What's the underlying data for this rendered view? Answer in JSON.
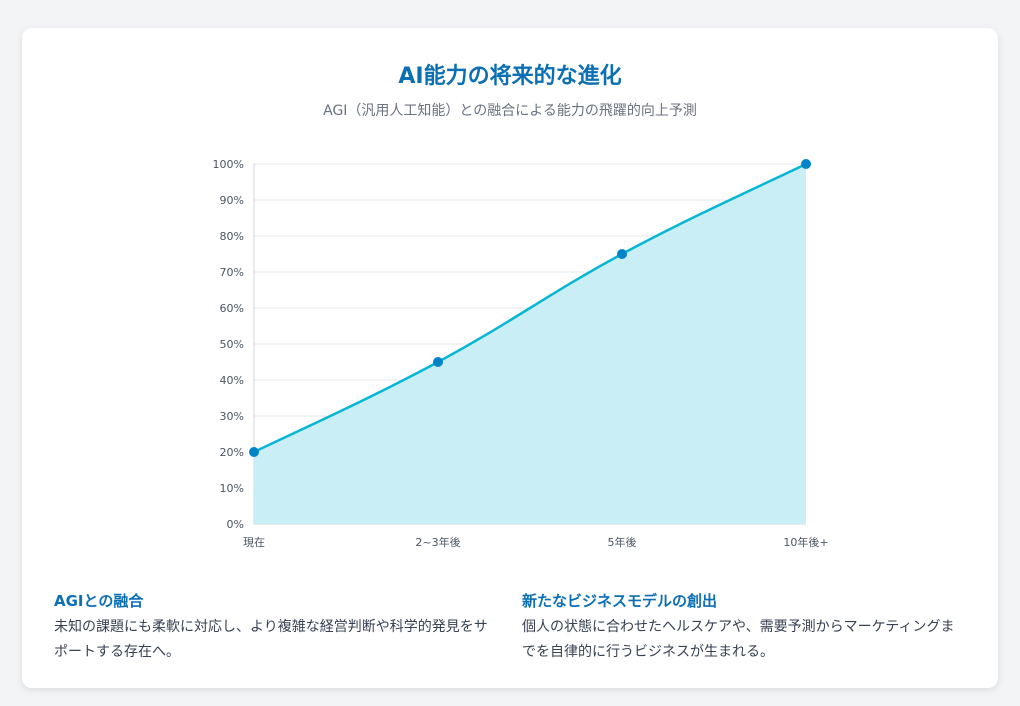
{
  "header": {
    "title": "AI能力の将来的な進化",
    "subtitle": "AGI（汎用人工知能）との融合による能力の飛躍的向上予測"
  },
  "chart_data": {
    "type": "area",
    "categories": [
      "現在",
      "2~3年後",
      "5年後",
      "10年後+"
    ],
    "values": [
      20,
      45,
      75,
      100
    ],
    "ylim": [
      0,
      100
    ],
    "yticks": [
      "0%",
      "10%",
      "20%",
      "30%",
      "40%",
      "50%",
      "60%",
      "70%",
      "80%",
      "90%",
      "100%"
    ],
    "grid": true,
    "colors": {
      "line": "#06b6d4",
      "fill": "#c9eef6",
      "point": "#0284c7"
    }
  },
  "sections": [
    {
      "heading": "AGIとの融合",
      "body": "未知の課題にも柔軟に対応し、より複雑な経営判断や科学的発見をサポートする存在へ。"
    },
    {
      "heading": "新たなビジネスモデルの創出",
      "body": "個人の状態に合わせたヘルスケアや、需要予測からマーケティングまでを自律的に行うビジネスが生まれる。"
    }
  ]
}
